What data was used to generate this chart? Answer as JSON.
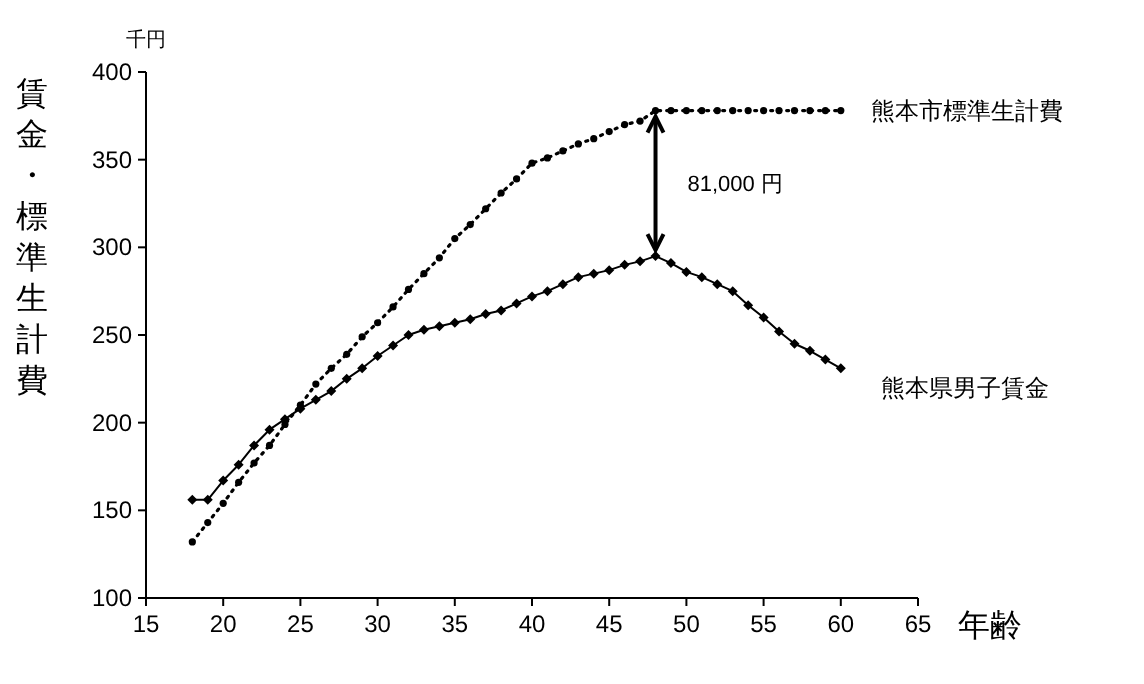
{
  "chart_data": {
    "type": "line",
    "ylabel": "賃金・標準生計費",
    "xlabel": "年齢",
    "x": [
      18,
      19,
      20,
      21,
      22,
      23,
      24,
      25,
      26,
      27,
      28,
      29,
      30,
      31,
      32,
      33,
      34,
      35,
      36,
      37,
      38,
      39,
      40,
      41,
      42,
      43,
      44,
      45,
      46,
      47,
      48,
      49,
      50,
      51,
      52,
      53,
      54,
      55,
      56,
      57,
      58,
      59,
      60
    ],
    "series": [
      {
        "name": "熊本市標準生計費",
        "color": "#000000",
        "line_style": "dotted",
        "marker": "circle",
        "values": [
          132,
          143,
          154,
          166,
          177,
          187,
          199,
          210,
          222,
          231,
          239,
          249,
          257,
          266,
          276,
          285,
          294,
          305,
          313,
          322,
          331,
          339,
          348,
          351,
          355,
          359,
          362,
          366,
          370,
          372,
          378,
          378,
          378,
          378,
          378,
          378,
          378,
          378,
          378,
          378,
          378,
          378,
          378
        ]
      },
      {
        "name": "熊本県男子賃金",
        "color": "#000000",
        "line_style": "solid",
        "marker": "diamond",
        "values": [
          156,
          156,
          167,
          176,
          187,
          196,
          202,
          208,
          213,
          218,
          225,
          231,
          238,
          244,
          250,
          253,
          255,
          257,
          259,
          262,
          264,
          268,
          272,
          275,
          279,
          283,
          285,
          287,
          290,
          292,
          295,
          291,
          286,
          283,
          279,
          275,
          267,
          260,
          252,
          245,
          241,
          236,
          231
        ]
      }
    ],
    "xlim": [
      15,
      65
    ],
    "xticks": [
      15,
      20,
      25,
      30,
      35,
      40,
      45,
      50,
      55,
      60,
      65
    ],
    "ylim": [
      100,
      400
    ],
    "yticks": [
      100,
      150,
      200,
      250,
      300,
      350,
      400
    ],
    "grid": false,
    "legend": false,
    "annotations": [
      "千円",
      "81,000 円"
    ]
  }
}
